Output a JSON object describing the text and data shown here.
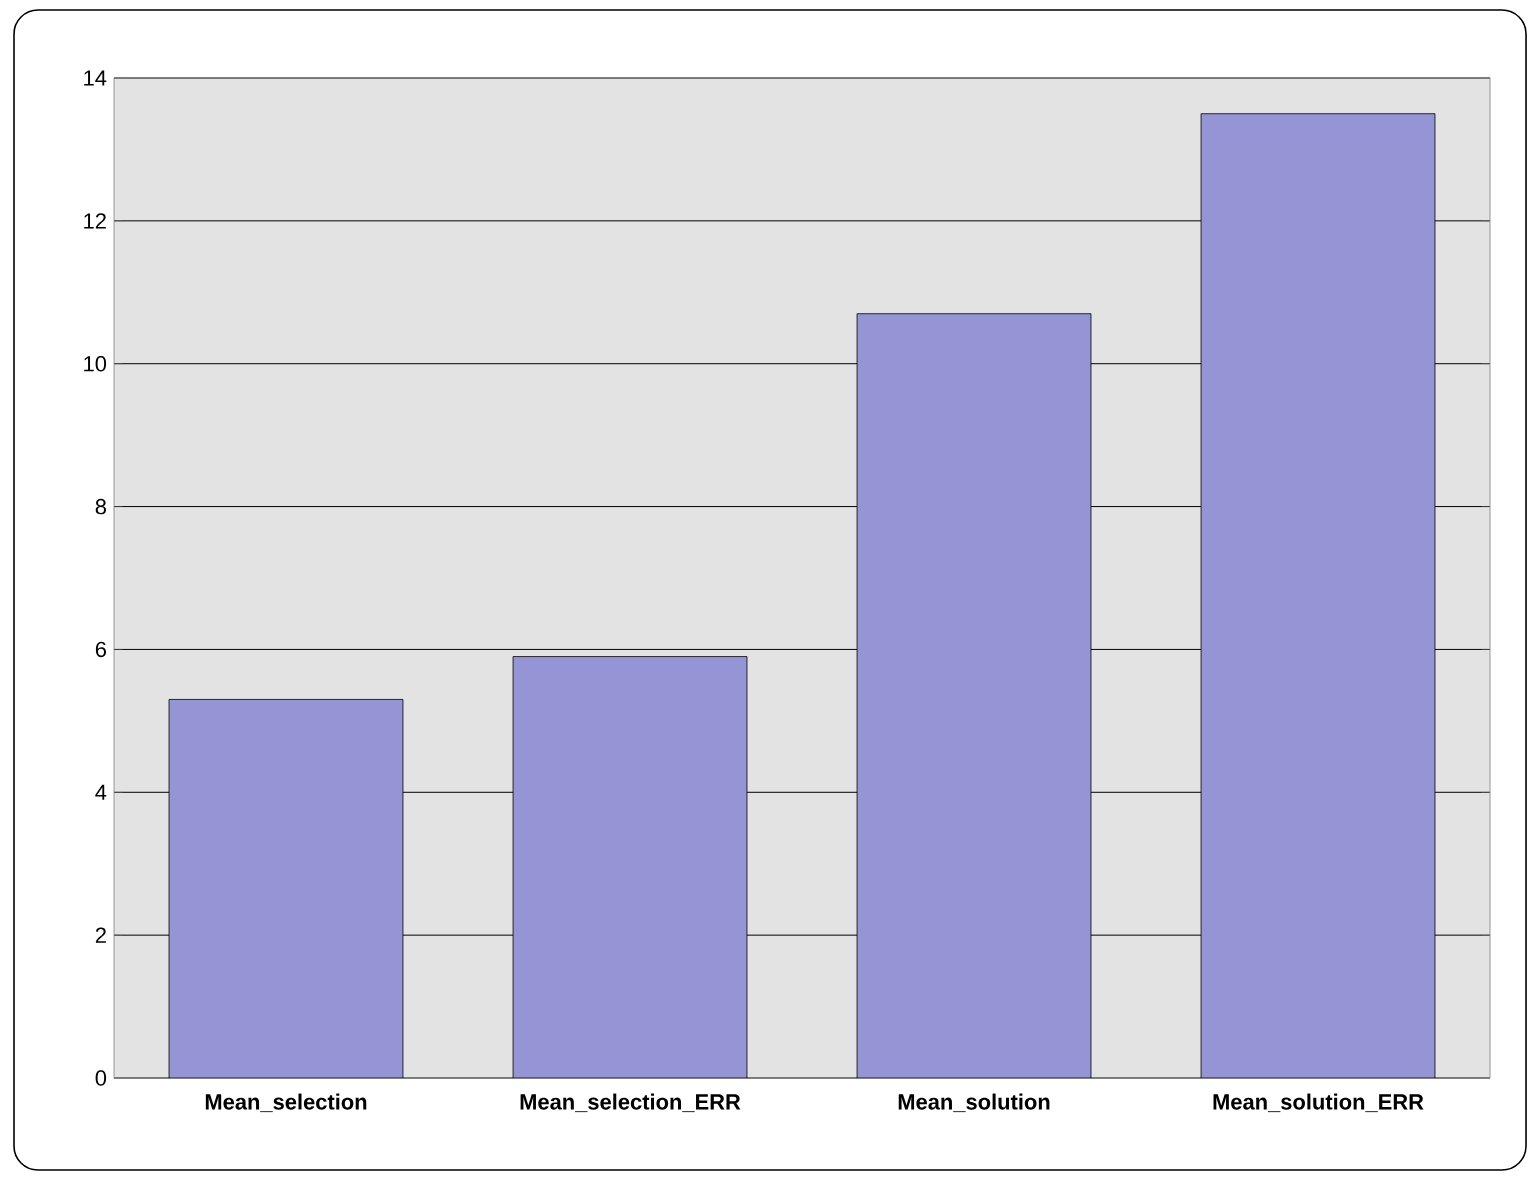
{
  "chart_data": {
    "type": "bar",
    "categories": [
      "Mean_selection",
      "Mean_selection_ERR",
      "Mean_solution",
      "Mean_solution_ERR"
    ],
    "values": [
      5.3,
      5.9,
      10.7,
      13.5
    ],
    "color": "#9595d5",
    "ylim": [
      0,
      14
    ],
    "yticks": [
      0,
      2,
      4,
      6,
      8,
      10,
      12,
      14
    ],
    "grid": "y"
  }
}
